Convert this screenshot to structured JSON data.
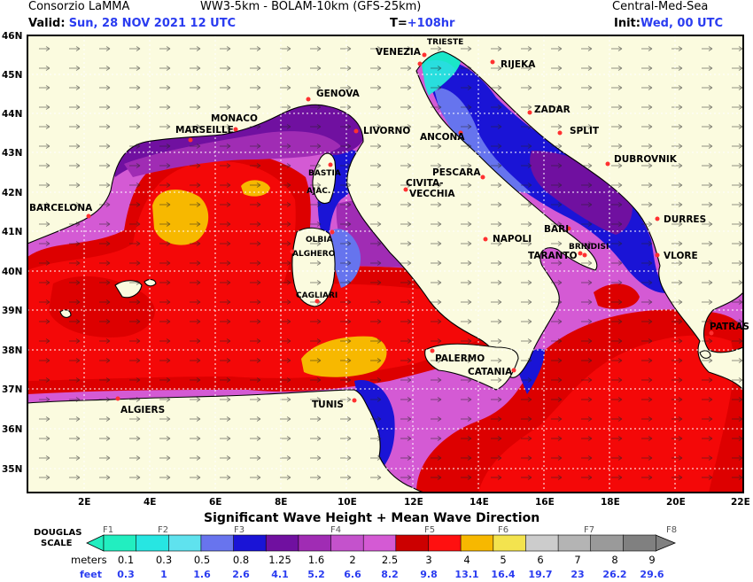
{
  "header": {
    "org": "Consorzio LaMMA",
    "model": "WW3-5km - BOLAM-10km (GFS-25km)",
    "area": "Central-Med-Sea",
    "valid_label": "Valid:",
    "valid_value": "Sun, 28 NOV 2021 12 UTC",
    "t_label": "T=",
    "t_value": "+108hr",
    "init_label": "Init:",
    "init_value": "Wed, 00 UTC"
  },
  "map": {
    "title": "Significant Wave Height + Mean Wave Direction",
    "lat_ticks": [
      "46N",
      "45N",
      "44N",
      "43N",
      "42N",
      "41N",
      "40N",
      "39N",
      "38N",
      "37N",
      "36N",
      "35N"
    ],
    "lon_ticks": [
      "2E",
      "4E",
      "6E",
      "8E",
      "10E",
      "12E",
      "14E",
      "16E",
      "18E",
      "20E",
      "22E"
    ],
    "cities": [
      "TRIESTE",
      "VENEZIA",
      "RIJEKA",
      "GENOVA",
      "ZADAR",
      "MONACO",
      "MARSEILLE",
      "LIVORNO",
      "ANCONA",
      "SPLIT",
      "DUBROVNIK",
      "BASTIA",
      "PESCARA",
      "CIVITA-",
      "VECCHIA",
      "AJAC.",
      "BARCELONA",
      "DURRES",
      "BARI",
      "OLBIA",
      "NAPOLI",
      "BRINDISI",
      "ALGHERO",
      "TARANTO",
      "VLORE",
      "CAGLIARI",
      "PATRAS",
      "PALERMO",
      "CATANIA",
      "TUNIS",
      "ALGIERS"
    ],
    "colors": {
      "land": "#fbfbdf",
      "band_01": "#1ae6c8",
      "band_03": "#28dede",
      "band_05": "#6674ee",
      "band_08": "#1a14d6",
      "band_125": "#7010a0",
      "band_16": "#a02cb4",
      "band_20": "#c452cc",
      "band_25": "#d45ad4",
      "band_30": "#cc0000",
      "band_40": "#f00808",
      "band_50": "#f7b800",
      "band_60": "#f2e050"
    }
  },
  "scale": {
    "name_line1": "DOUGLAS",
    "name_line2": "SCALE",
    "forces": [
      "F1",
      "F2",
      "F3",
      "F4",
      "F5",
      "F6",
      "F7",
      "F8"
    ],
    "meters_label": "meters",
    "meters": [
      "0.1",
      "0.3",
      "0.5",
      "0.8",
      "1.25",
      "1.6",
      "2",
      "2.5",
      "3",
      "4",
      "5",
      "6",
      "7",
      "8",
      "9"
    ],
    "feet_label": "feet",
    "feet": [
      "0.3",
      "1",
      "1.6",
      "2.6",
      "4.1",
      "5.2",
      "6.6",
      "8.2",
      "9.8",
      "13.1",
      "16.4",
      "19.7",
      "23",
      "26.2",
      "29.6"
    ],
    "colors": [
      "#22eec0",
      "#27e6e2",
      "#5fe2ee",
      "#6874ee",
      "#1a14d6",
      "#7010a0",
      "#a02cb4",
      "#c452cc",
      "#d45ad4",
      "#cc0000",
      "#ff1010",
      "#f7b800",
      "#f3e34e",
      "#cccccc",
      "#b4b4b4",
      "#9a9a9a",
      "#808080"
    ]
  }
}
